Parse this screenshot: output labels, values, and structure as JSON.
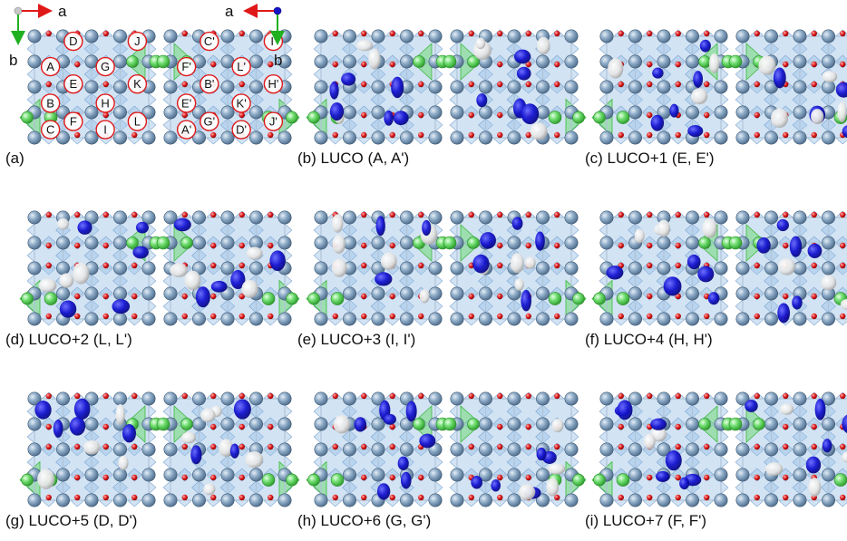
{
  "panels": [
    {
      "id": "a",
      "caption": "(a)"
    },
    {
      "id": "b",
      "caption": "(b) LUCO (A, A')"
    },
    {
      "id": "c",
      "caption": "(c) LUCO+1 (E, E')"
    },
    {
      "id": "d",
      "caption": "(d) LUCO+2 (L, L')"
    },
    {
      "id": "e",
      "caption": "(e) LUCO+3 (I, I')"
    },
    {
      "id": "f",
      "caption": "(f) LUCO+4 (H, H')"
    },
    {
      "id": "g",
      "caption": "(g) LUCO+5 (D, D')"
    },
    {
      "id": "h",
      "caption": "(h) LUCO+6 (G, G')"
    },
    {
      "id": "i",
      "caption": "(i) LUCO+7 (F, F')"
    }
  ],
  "axes": {
    "a_label": "a",
    "b_label": "b"
  },
  "site_labels_left": [
    "D",
    "J",
    "A",
    "G",
    "E",
    "K",
    "B",
    "H",
    "C",
    "F",
    "I",
    "L"
  ],
  "site_labels_right": [
    "C'",
    "I'",
    "F'",
    "L'",
    "B'",
    "H'",
    "E'",
    "K'",
    "A'",
    "G'",
    "D'",
    "J'"
  ],
  "colors": {
    "atom_gray": "#7e9cb8",
    "atom_green": "#5ed65e",
    "oxygen_red": "#d81818",
    "octahedron_blue": "#9cc0e6",
    "orbital_blue": "#1010c8",
    "orbital_white": "#e8e8e8",
    "label_ring": "#e01818",
    "axis_a_arrow": "#e01818",
    "axis_b_arrow": "#20b020"
  },
  "icons": {
    "axis_origin": "axis-origin-sphere-icon"
  }
}
